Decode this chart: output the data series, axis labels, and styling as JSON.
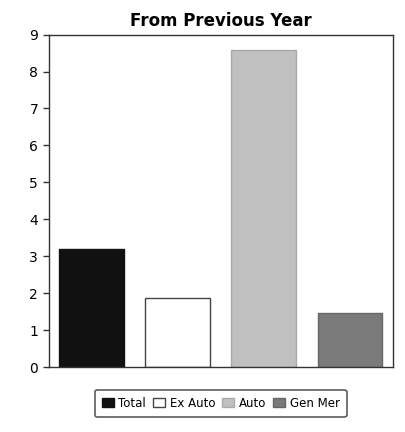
{
  "title": "From Previous Year",
  "categories": [
    "Total",
    "Ex Auto",
    "Auto",
    "Gen Mer"
  ],
  "values": [
    3.2,
    1.87,
    8.57,
    1.47
  ],
  "bar_colors": [
    "#111111",
    "#ffffff",
    "#c0c0c0",
    "#7a7a7a"
  ],
  "bar_edgecolors": [
    "#111111",
    "#444444",
    "#aaaaaa",
    "#666666"
  ],
  "ylim": [
    0,
    9
  ],
  "yticks": [
    0,
    1,
    2,
    3,
    4,
    5,
    6,
    7,
    8,
    9
  ],
  "background_color": "#ffffff",
  "title_fontsize": 12,
  "title_fontweight": "bold",
  "legend_labels": [
    "Total",
    "Ex Auto",
    "Auto",
    "Gen Mer"
  ],
  "legend_colors": [
    "#111111",
    "#ffffff",
    "#c0c0c0",
    "#7a7a7a"
  ],
  "legend_edge_colors": [
    "#111111",
    "#444444",
    "#aaaaaa",
    "#666666"
  ]
}
